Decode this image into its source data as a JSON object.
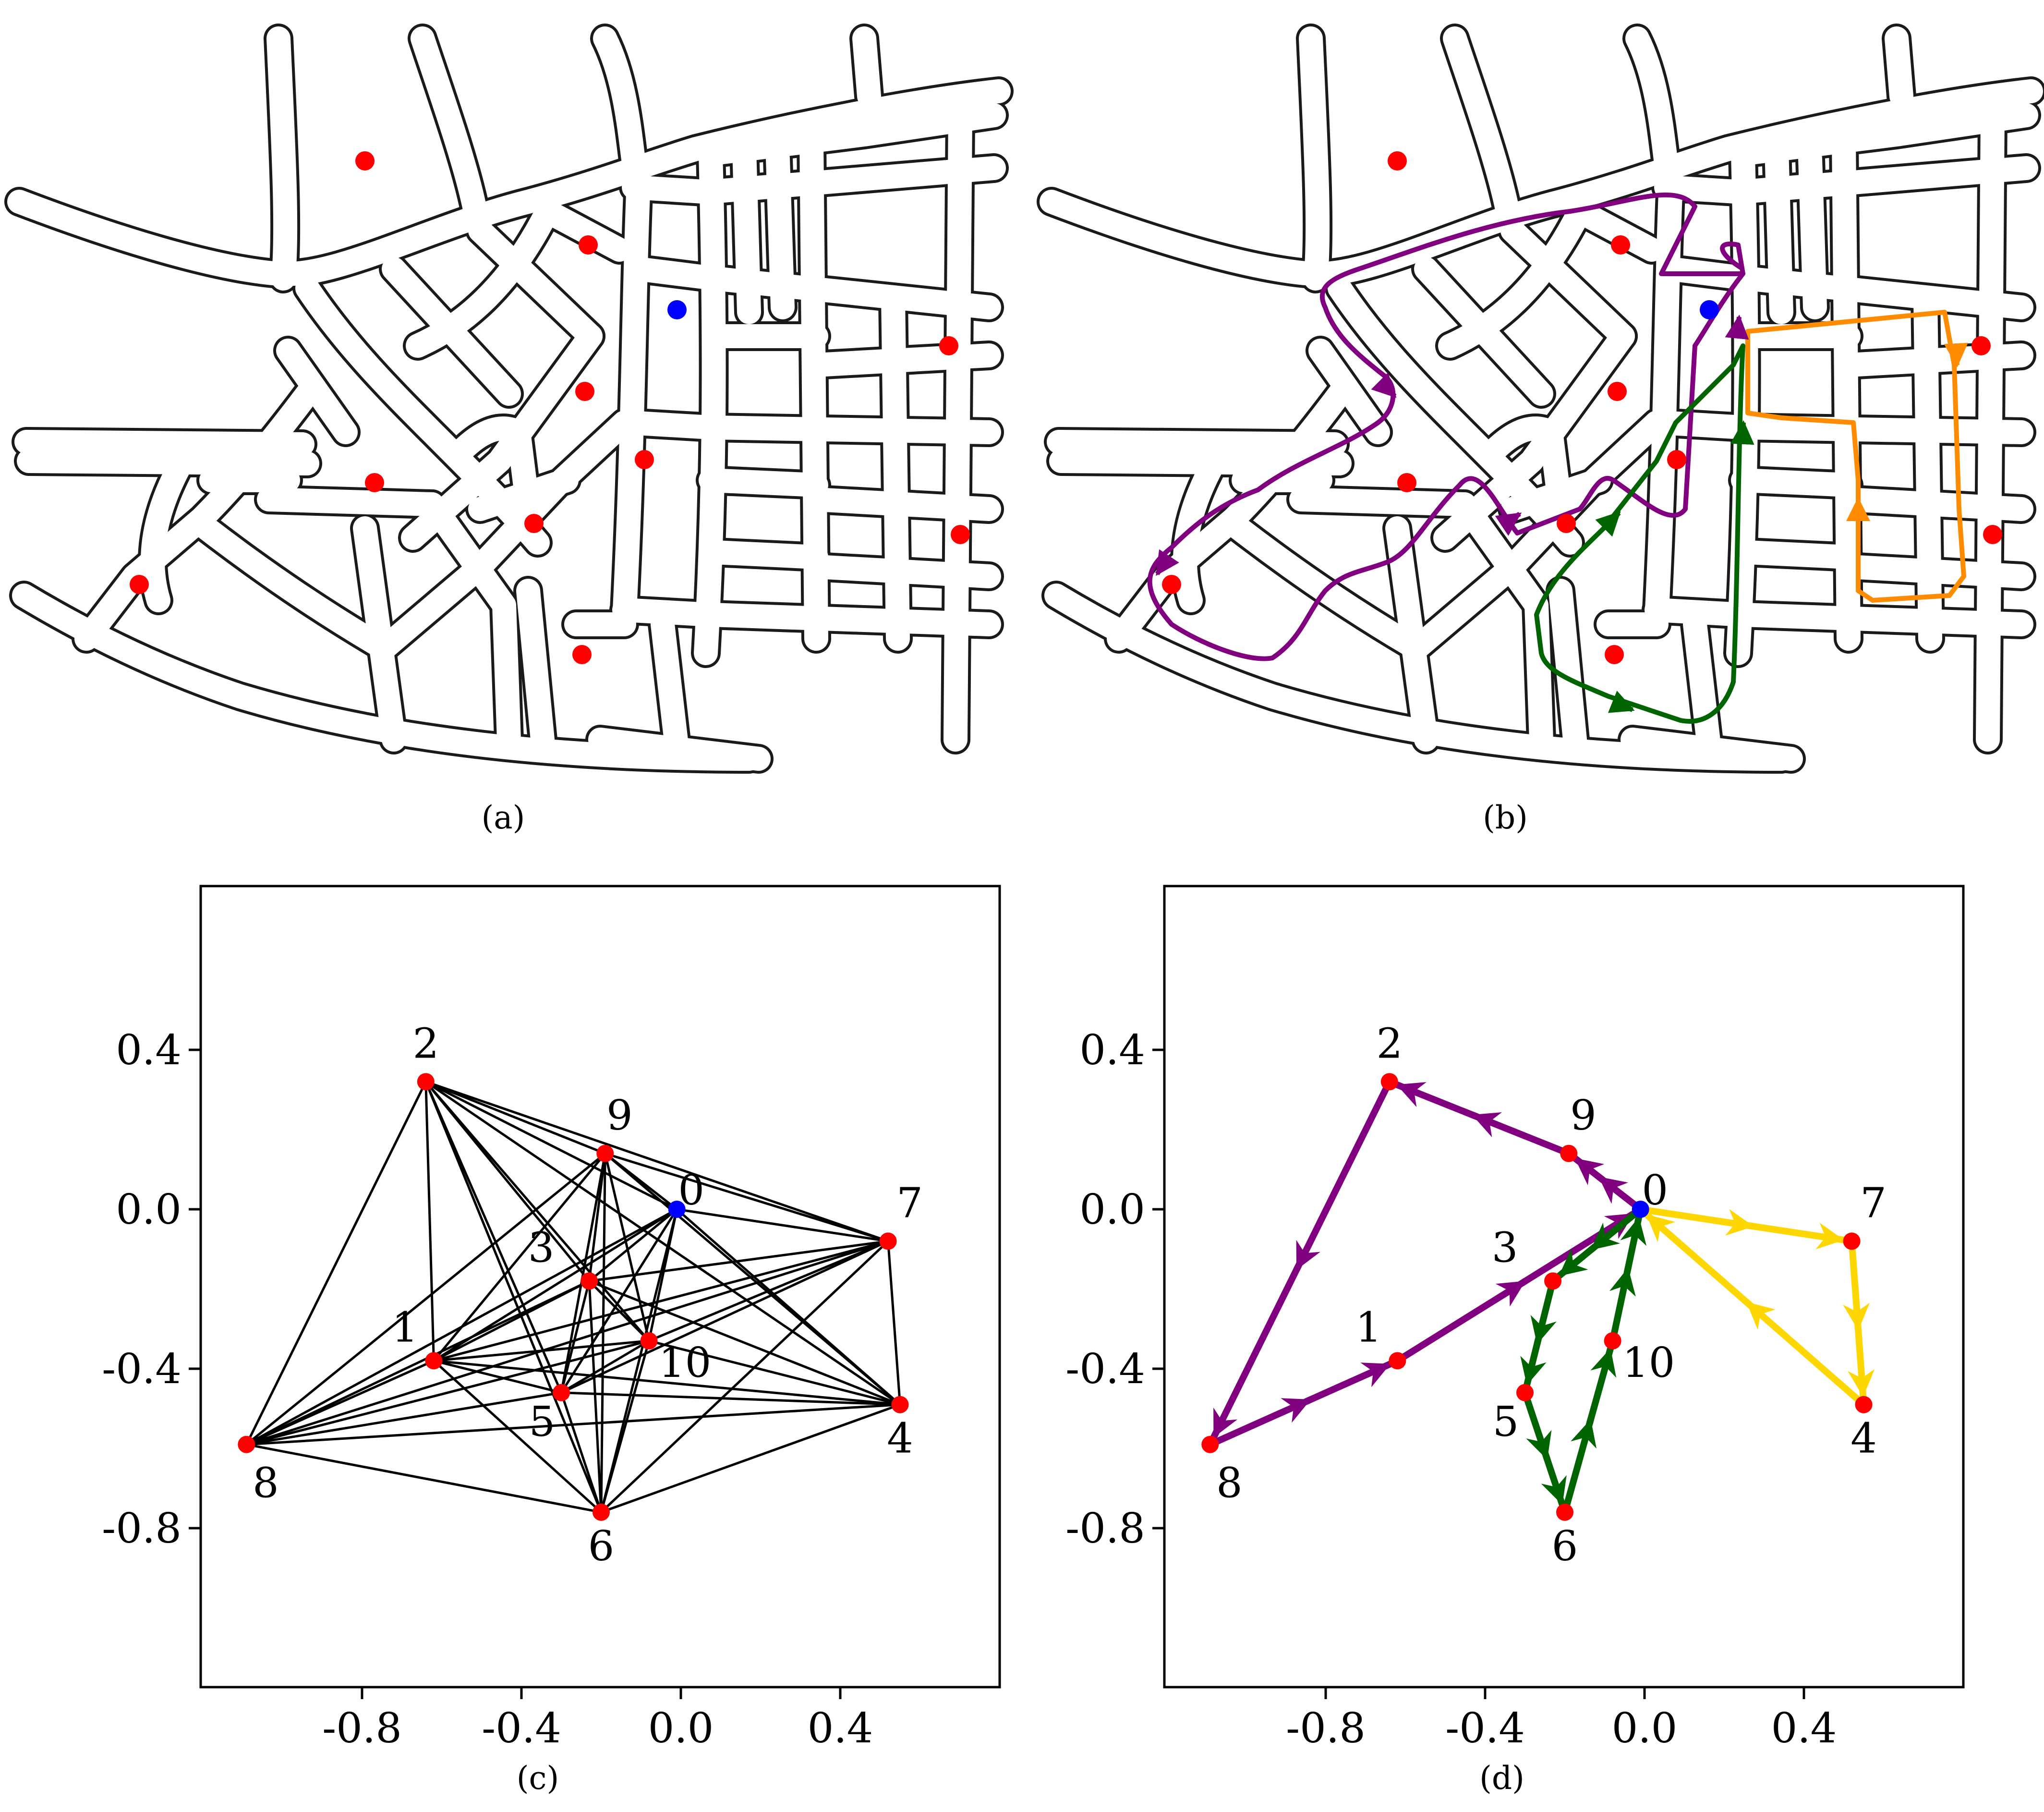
{
  "captions": {
    "a": "(a)",
    "b": "(b)",
    "c": "(c)",
    "d": "(d)"
  },
  "colors": {
    "customer": "#ff0000",
    "depot": "#0000ff",
    "route_purple": "#800080",
    "route_green": "#006400",
    "route_orange": "#ff8c00",
    "route_yellow": "#ffd700",
    "edge": "#000000"
  },
  "axis": {
    "xticks": [
      "-0.8",
      "-0.4",
      "0.0",
      "0.4"
    ],
    "yticks": [
      "0.4",
      "0.0",
      "-0.4",
      "-0.8"
    ]
  },
  "nodes": [
    {
      "id": "0",
      "x": -0.01,
      "y": 0.0,
      "type": "depot"
    },
    {
      "id": "1",
      "x": -0.62,
      "y": -0.38,
      "type": "customer"
    },
    {
      "id": "2",
      "x": -0.64,
      "y": 0.32,
      "type": "customer"
    },
    {
      "id": "3",
      "x": -0.23,
      "y": -0.18,
      "type": "customer"
    },
    {
      "id": "4",
      "x": 0.55,
      "y": -0.49,
      "type": "customer"
    },
    {
      "id": "5",
      "x": -0.3,
      "y": -0.46,
      "type": "customer"
    },
    {
      "id": "6",
      "x": -0.2,
      "y": -0.76,
      "type": "customer"
    },
    {
      "id": "7",
      "x": 0.52,
      "y": -0.08,
      "type": "customer"
    },
    {
      "id": "8",
      "x": -1.09,
      "y": -0.59,
      "type": "customer"
    },
    {
      "id": "9",
      "x": -0.19,
      "y": 0.14,
      "type": "customer"
    },
    {
      "id": "10",
      "x": -0.08,
      "y": -0.33,
      "type": "customer"
    }
  ],
  "routes": [
    {
      "color": "purple",
      "path": [
        "0",
        "9",
        "2",
        "8",
        "1",
        "0"
      ]
    },
    {
      "color": "green",
      "path": [
        "0",
        "3",
        "5",
        "6",
        "10",
        "0"
      ]
    },
    {
      "color": "yellow",
      "path": [
        "0",
        "7",
        "4",
        "0"
      ]
    }
  ]
}
